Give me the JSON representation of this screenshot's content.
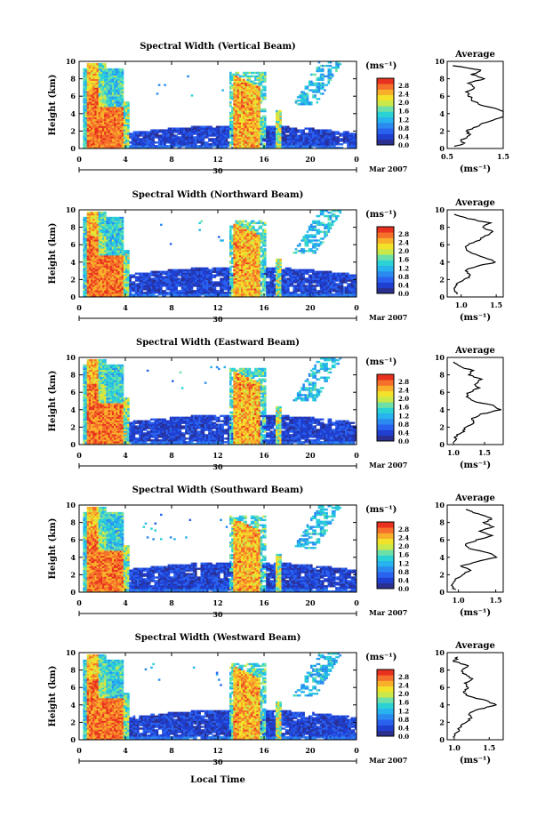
{
  "colors": {
    "scale": [
      "#2b2f8f",
      "#1f3fd0",
      "#2a62f0",
      "#2a8af0",
      "#27b3ee",
      "#2ad2d6",
      "#6de0a8",
      "#c9e84a",
      "#f3e22a",
      "#f8b02a",
      "#f5702a",
      "#e8321f"
    ]
  },
  "shared": {
    "date_label": "30",
    "month_label": "Mar 2007",
    "xlabel": "Local Time",
    "colorbar_unit": "(ms⁻¹)",
    "colorbar_ticks": [
      "2.8",
      "2.4",
      "2.0",
      "1.6",
      "1.2",
      "0.8",
      "0.4",
      "0.0"
    ],
    "avg_title": "Average",
    "avg_unit": "(ms⁻¹)"
  },
  "chart_data": [
    {
      "type": "heatmap",
      "title": "Spectral Width (Vertical Beam)",
      "ylabel": "Height (km)",
      "xticks": [
        "0",
        "4",
        "8",
        "12",
        "16",
        "20",
        "0"
      ],
      "yticks": [
        "0",
        "2",
        "4",
        "6",
        "8",
        "10"
      ],
      "xlim": [
        0,
        24
      ],
      "ylim": [
        0,
        10
      ],
      "avg_xticks": [
        "0.5",
        "1.5"
      ],
      "avg_xlim": [
        0.5,
        1.5
      ],
      "avg_profile": [
        [
          0.6,
          0.2
        ],
        [
          0.8,
          0.5
        ],
        [
          0.75,
          1.0
        ],
        [
          0.9,
          1.5
        ],
        [
          0.85,
          2.0
        ],
        [
          1.0,
          2.5
        ],
        [
          1.2,
          3.0
        ],
        [
          1.45,
          3.5
        ],
        [
          1.6,
          4.0
        ],
        [
          1.4,
          4.5
        ],
        [
          1.1,
          5.0
        ],
        [
          0.95,
          5.5
        ],
        [
          0.9,
          6.0
        ],
        [
          0.85,
          6.5
        ],
        [
          1.0,
          7.0
        ],
        [
          0.9,
          7.5
        ],
        [
          1.15,
          8.0
        ],
        [
          0.95,
          8.5
        ],
        [
          1.1,
          9.0
        ],
        [
          0.6,
          9.5
        ]
      ]
    },
    {
      "type": "heatmap",
      "title": "Spectral Width (Northward Beam)",
      "ylabel": "Height (km)",
      "xticks": [
        "0",
        "4",
        "8",
        "12",
        "16",
        "20",
        "0"
      ],
      "yticks": [
        "0",
        "2",
        "4",
        "6",
        "8",
        "10"
      ],
      "xlim": [
        0,
        24
      ],
      "ylim": [
        0,
        10
      ],
      "avg_xticks": [
        "1.0",
        "1.5"
      ],
      "avg_xlim": [
        0.8,
        1.6
      ],
      "avg_profile": [
        [
          0.95,
          0.3
        ],
        [
          0.9,
          1.0
        ],
        [
          0.95,
          1.5
        ],
        [
          1.05,
          2.0
        ],
        [
          1.15,
          2.5
        ],
        [
          1.05,
          3.0
        ],
        [
          1.2,
          3.5
        ],
        [
          1.5,
          4.0
        ],
        [
          1.35,
          4.5
        ],
        [
          1.15,
          5.0
        ],
        [
          1.05,
          5.5
        ],
        [
          1.1,
          6.0
        ],
        [
          1.25,
          6.5
        ],
        [
          1.35,
          7.0
        ],
        [
          1.45,
          7.5
        ],
        [
          1.3,
          8.0
        ],
        [
          1.4,
          8.5
        ],
        [
          1.1,
          9.0
        ],
        [
          0.9,
          9.5
        ]
      ]
    },
    {
      "type": "heatmap",
      "title": "Spectral Width (Eastward Beam)",
      "ylabel": "Height (km)",
      "xticks": [
        "0",
        "4",
        "8",
        "12",
        "16",
        "20",
        "0"
      ],
      "yticks": [
        "0",
        "2",
        "4",
        "6",
        "8",
        "10"
      ],
      "xlim": [
        0,
        24
      ],
      "ylim": [
        0,
        10
      ],
      "avg_xticks": [
        "1.0",
        "1.5"
      ],
      "avg_xlim": [
        0.9,
        1.8
      ],
      "avg_profile": [
        [
          1.0,
          0.3
        ],
        [
          1.05,
          1.0
        ],
        [
          1.15,
          1.5
        ],
        [
          1.2,
          2.0
        ],
        [
          1.35,
          2.5
        ],
        [
          1.3,
          3.0
        ],
        [
          1.45,
          3.5
        ],
        [
          1.75,
          4.0
        ],
        [
          1.65,
          4.5
        ],
        [
          1.3,
          5.0
        ],
        [
          1.2,
          5.5
        ],
        [
          1.25,
          6.0
        ],
        [
          1.4,
          6.5
        ],
        [
          1.35,
          7.0
        ],
        [
          1.45,
          7.5
        ],
        [
          1.25,
          8.0
        ],
        [
          1.3,
          8.5
        ],
        [
          1.1,
          9.0
        ],
        [
          1.0,
          9.5
        ]
      ]
    },
    {
      "type": "heatmap",
      "title": "Spectral Width (Southward Beam)",
      "ylabel": "Height (km)",
      "xticks": [
        "0",
        "4",
        "8",
        "12",
        "16",
        "20",
        "0"
      ],
      "yticks": [
        "0",
        "2",
        "4",
        "6",
        "8",
        "10"
      ],
      "xlim": [
        0,
        24
      ],
      "ylim": [
        0,
        10
      ],
      "avg_xticks": [
        "1.0",
        "1.5"
      ],
      "avg_xlim": [
        0.85,
        1.6
      ],
      "avg_profile": [
        [
          0.95,
          0.3
        ],
        [
          0.9,
          0.8
        ],
        [
          0.95,
          1.5
        ],
        [
          1.05,
          2.0
        ],
        [
          1.15,
          2.5
        ],
        [
          1.05,
          3.0
        ],
        [
          1.25,
          3.5
        ],
        [
          1.5,
          4.0
        ],
        [
          1.4,
          4.5
        ],
        [
          1.15,
          5.0
        ],
        [
          1.1,
          5.5
        ],
        [
          1.25,
          6.0
        ],
        [
          1.45,
          6.5
        ],
        [
          1.3,
          7.0
        ],
        [
          1.45,
          7.5
        ],
        [
          1.35,
          8.0
        ],
        [
          1.45,
          8.5
        ],
        [
          1.25,
          9.0
        ],
        [
          1.1,
          9.5
        ]
      ]
    },
    {
      "type": "heatmap",
      "title": "Spectral Width (Westward Beam)",
      "ylabel": "Height (km)",
      "xticks": [
        "0",
        "4",
        "8",
        "12",
        "16",
        "20",
        "0"
      ],
      "yticks": [
        "0",
        "2",
        "4",
        "6",
        "8",
        "10"
      ],
      "xlim": [
        0,
        24
      ],
      "ylim": [
        0,
        10
      ],
      "avg_xticks": [
        "1.0",
        "1.5"
      ],
      "avg_xlim": [
        0.9,
        1.7
      ],
      "avg_profile": [
        [
          1.0,
          0.3
        ],
        [
          1.05,
          1.0
        ],
        [
          1.1,
          1.5
        ],
        [
          1.15,
          2.0
        ],
        [
          1.25,
          2.5
        ],
        [
          1.2,
          3.0
        ],
        [
          1.35,
          3.5
        ],
        [
          1.6,
          4.0
        ],
        [
          1.45,
          4.5
        ],
        [
          1.2,
          5.0
        ],
        [
          1.15,
          5.5
        ],
        [
          1.2,
          6.0
        ],
        [
          1.15,
          6.5
        ],
        [
          1.25,
          7.0
        ],
        [
          1.15,
          7.5
        ],
        [
          1.1,
          8.0
        ],
        [
          1.2,
          8.5
        ],
        [
          1.0,
          9.0
        ],
        [
          1.05,
          9.5
        ]
      ]
    }
  ]
}
